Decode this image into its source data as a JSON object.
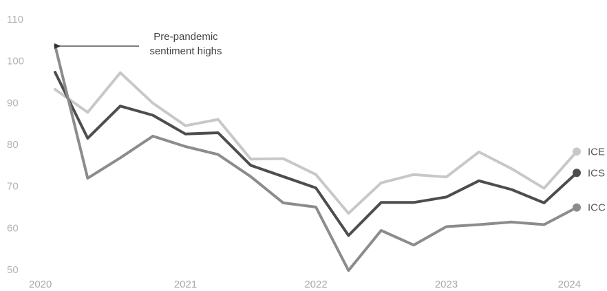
{
  "chart_data": {
    "type": "line",
    "title": "",
    "xlabel": "",
    "ylabel": "",
    "ylim": [
      50,
      110
    ],
    "yticks": [
      110,
      100,
      90,
      80,
      70,
      60,
      50
    ],
    "xticks": [
      "2020",
      "2021",
      "2022",
      "2023",
      "2024"
    ],
    "grid": false,
    "legend": "end-of-line labels",
    "x": [
      2020.0,
      2020.25,
      2020.5,
      2020.75,
      2021.0,
      2021.25,
      2021.5,
      2021.75,
      2022.0,
      2022.25,
      2022.5,
      2022.75,
      2023.0,
      2023.25,
      2023.5,
      2023.75,
      2024.0
    ],
    "series": [
      {
        "name": "ICE",
        "color": "#c8c8c8",
        "values": [
          93.2,
          87.7,
          97.2,
          89.9,
          84.5,
          86.0,
          76.5,
          76.6,
          72.8,
          63.5,
          70.8,
          72.8,
          72.2,
          78.2,
          74.2,
          69.5,
          78.3
        ]
      },
      {
        "name": "ICS",
        "color": "#4d4d4d",
        "values": [
          97.3,
          81.5,
          89.2,
          87.0,
          82.5,
          82.8,
          75.0,
          72.3,
          69.6,
          58.2,
          66.1,
          66.1,
          67.4,
          71.3,
          69.2,
          66.0,
          73.2
        ]
      },
      {
        "name": "ICC",
        "color": "#8c8c8c",
        "values": [
          103.7,
          71.9,
          76.8,
          82.0,
          79.5,
          77.6,
          72.3,
          66.0,
          65.0,
          49.8,
          59.4,
          55.9,
          60.3,
          60.8,
          61.4,
          60.8,
          64.9
        ]
      }
    ],
    "annotation": {
      "text_lines": [
        "Pre-pandemic",
        "sentiment highs"
      ]
    }
  }
}
